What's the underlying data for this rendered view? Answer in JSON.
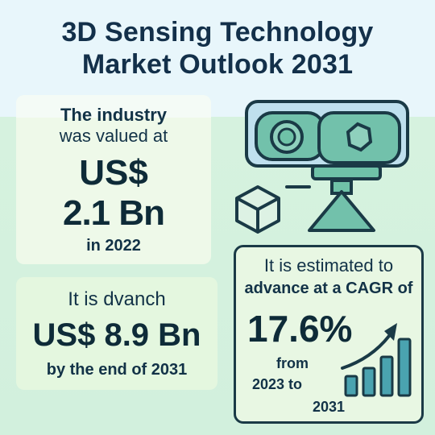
{
  "title": {
    "line1": "3D Sensing Technology",
    "line2": "Market Outlook 2031"
  },
  "card_valued": {
    "line1": "The industry",
    "line2": "was valued at",
    "currency": "US$",
    "amount": "2.1 Bn",
    "year": "in 2022"
  },
  "card_forecast": {
    "line1": "It is dvanch",
    "amount": "US$ 8.9 Bn",
    "line3": "by the end of 2031"
  },
  "card_cagr": {
    "line1": "It is estimated to",
    "line2": "advance at a CAGR of",
    "cagr": "17.6%",
    "from": "from",
    "range": "2023 to",
    "end_year": "2031"
  },
  "icons": [
    "3d-camera-icon",
    "cube-icon",
    "tripod-icon",
    "growth-bar-chart-icon",
    "trend-arrow-icon"
  ],
  "colors": {
    "navy": "#13304a",
    "teal": "#6fc2a8",
    "card_border": "#1a3a46",
    "bg_top": "#e8f6fb",
    "bg_bottom": "#d6f2df"
  }
}
